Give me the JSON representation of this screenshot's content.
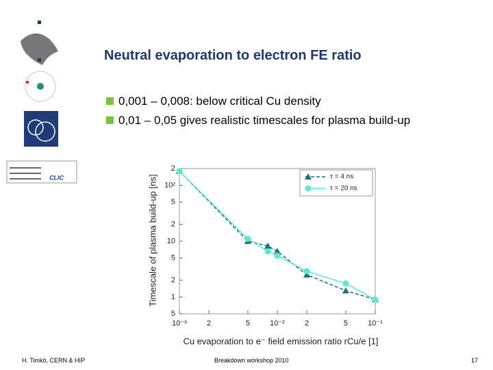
{
  "slide": {
    "title": "Neutral evaporation to electron FE ratio",
    "bullets": [
      "0,001 – 0,008: below critical Cu density",
      "0,01 – 0,05 gives realistic timescales for plasma build-up"
    ],
    "footer_left": "H. Timkó, CERN & HIP",
    "footer_center": "Breakdown workshop 2010",
    "page_number": "17"
  },
  "chart_data": {
    "type": "line",
    "x_label": "Cu evaporation to e⁻ field emission ratio rCu/e [1]",
    "y_label": "Timescale of plasma build-up [ns]",
    "log_x": true,
    "log_y": true,
    "xlim": [
      0.001,
      0.1
    ],
    "xticks": [
      {
        "value": 0.001,
        "label": "10⁻³"
      },
      {
        "value": 0.002,
        "label": "2"
      },
      {
        "value": 0.005,
        "label": "5"
      },
      {
        "value": 0.01,
        "label": "10⁻²"
      },
      {
        "value": 0.02,
        "label": "2"
      },
      {
        "value": 0.05,
        "label": "5"
      },
      {
        "value": 0.1,
        "label": "10⁻¹"
      }
    ],
    "ylim": [
      0.5,
      200
    ],
    "yticks": [
      {
        "value": 0.5,
        "label": "5"
      },
      1,
      2,
      {
        "value": 5,
        "label": "5"
      },
      10,
      {
        "value": 20,
        "label": "2"
      },
      {
        "value": 50,
        "label": "5"
      },
      {
        "value": 100,
        "label": "10²"
      },
      {
        "value": 200,
        "label": "2"
      }
    ],
    "x": [
      0.001,
      0.005,
      0.008,
      0.01,
      0.02,
      0.05,
      0.1
    ],
    "series": [
      {
        "name": "τ = 4 ns",
        "color": "#1f6f78",
        "marker": "triangle",
        "dash": true,
        "values": [
          180,
          10,
          8.2,
          6.6,
          2.5,
          1.3,
          0.9
        ]
      },
      {
        "name": "τ = 20 ns",
        "color": "#5ee8cf",
        "marker": "circle",
        "dash": false,
        "values": [
          180,
          11,
          6.6,
          5.5,
          2.9,
          1.75,
          0.9
        ]
      }
    ]
  }
}
